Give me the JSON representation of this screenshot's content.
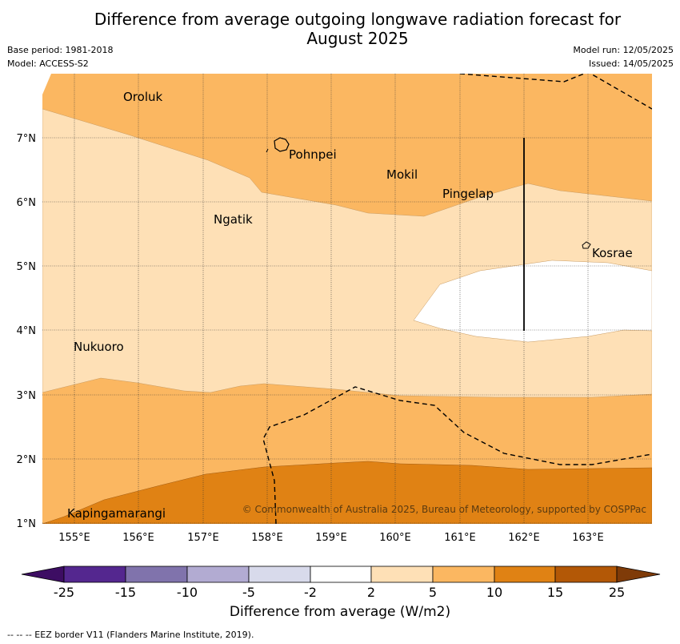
{
  "title_line1": "Difference from average outgoing longwave radiation forecast for",
  "title_line2": "August 2025",
  "base_period": "Base period: 1981-2018",
  "model": "Model: ACCESS-S2",
  "model_run": "Model run: 12/05/2025",
  "issued": "Issued: 14/05/2025",
  "copyright": "© Commonwealth of Australia 2025, Bureau of Meteorology, supported by COSPPac",
  "lon_labels": [
    "155°E",
    "156°E",
    "157°E",
    "158°E",
    "159°E",
    "160°E",
    "161°E",
    "162°E",
    "163°E"
  ],
  "lat_labels": [
    "1°N",
    "2°N",
    "3°N",
    "4°N",
    "5°N",
    "6°N",
    "7°N"
  ],
  "places": [
    {
      "name": "Oroluk",
      "lon": 155.75,
      "lat": 7.7
    },
    {
      "name": "Pohnpei",
      "lon": 158.3,
      "lat": 6.85
    },
    {
      "name": "Mokil",
      "lon": 159.8,
      "lat": 6.4
    },
    {
      "name": "Pingelap",
      "lon": 160.75,
      "lat": 6.15
    },
    {
      "name": "Ngatik",
      "lon": 157.15,
      "lat": 5.8
    },
    {
      "name": "Kosrae",
      "lon": 163.0,
      "lat": 5.3
    },
    {
      "name": "Nukuoro",
      "lon": 154.95,
      "lat": 3.8
    },
    {
      "name": "Kapingamarangi",
      "lon": 154.8,
      "lat": 1.2
    }
  ],
  "colorbar": {
    "title": "Difference from average (W/m2)",
    "ticks": [
      "-25",
      "-15",
      "-10",
      "-5",
      "-2",
      "2",
      "5",
      "10",
      "15",
      "25"
    ],
    "colors": [
      "#3d0d63",
      "#54278f",
      "#8073ac",
      "#b2abd2",
      "#d8daeb",
      "#ffffff",
      "#fee0b6",
      "#fbb761",
      "#e08214",
      "#b35806",
      "#7f3b08"
    ]
  },
  "legend_note": "--  --  -- EEZ border V11 (Flanders Marine Institute, 2019)."
}
